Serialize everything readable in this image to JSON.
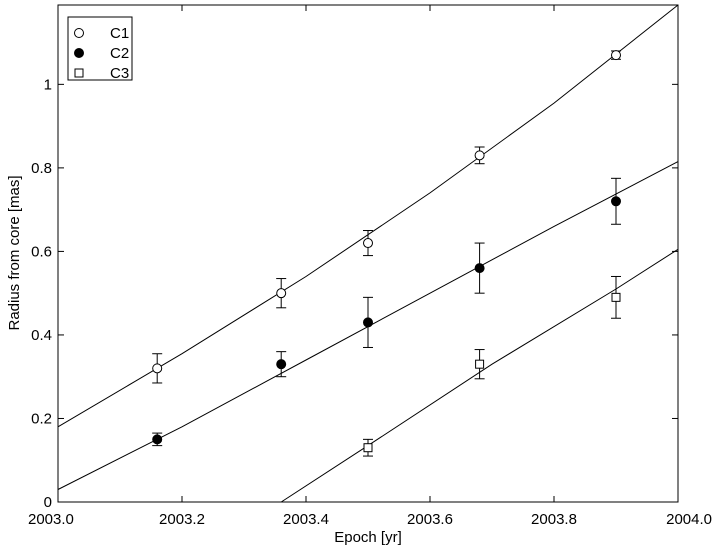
{
  "chart_data": {
    "type": "scatter",
    "title": "",
    "xlabel": "Epoch [yr]",
    "ylabel": "Radius from core [mas]",
    "xlim": [
      2003.0,
      2004.0
    ],
    "ylim": [
      0,
      1.19
    ],
    "x_ticks": [
      2003.0,
      2003.2,
      2003.4,
      2003.6,
      2003.8,
      2004.0
    ],
    "x_tick_labels": [
      "2003.0",
      "2003.2",
      "2003.4",
      "2003.6",
      "2003.8",
      "2004.0"
    ],
    "y_ticks": [
      0,
      0.2,
      0.4,
      0.6,
      0.8,
      1.0
    ],
    "y_tick_labels": [
      "0",
      "0.2",
      "0.4",
      "0.6",
      "0.8",
      "1"
    ],
    "grid": false,
    "legend_position": "top-left",
    "series": [
      {
        "name": "C1",
        "marker": "open-circle",
        "points": [
          {
            "x": 2003.16,
            "y": 0.32,
            "err": 0.035
          },
          {
            "x": 2003.36,
            "y": 0.5,
            "err": 0.035
          },
          {
            "x": 2003.5,
            "y": 0.62,
            "err": 0.03
          },
          {
            "x": 2003.68,
            "y": 0.83,
            "err": 0.02
          },
          {
            "x": 2003.9,
            "y": 1.07,
            "err": 0.01
          }
        ],
        "fit": [
          {
            "x": 2003.0,
            "y": 0.18
          },
          {
            "x": 2003.2,
            "y": 0.355
          },
          {
            "x": 2003.4,
            "y": 0.54
          },
          {
            "x": 2003.6,
            "y": 0.74
          },
          {
            "x": 2003.8,
            "y": 0.955
          },
          {
            "x": 2004.0,
            "y": 1.19
          }
        ]
      },
      {
        "name": "C2",
        "marker": "filled-circle",
        "points": [
          {
            "x": 2003.16,
            "y": 0.15,
            "err": 0.015
          },
          {
            "x": 2003.36,
            "y": 0.33,
            "err": 0.03
          },
          {
            "x": 2003.5,
            "y": 0.43,
            "err": 0.06
          },
          {
            "x": 2003.68,
            "y": 0.56,
            "err": 0.06
          },
          {
            "x": 2003.9,
            "y": 0.72,
            "err": 0.055
          }
        ],
        "fit": [
          {
            "x": 2003.0,
            "y": 0.03
          },
          {
            "x": 2003.2,
            "y": 0.18
          },
          {
            "x": 2003.4,
            "y": 0.34
          },
          {
            "x": 2003.6,
            "y": 0.5
          },
          {
            "x": 2003.8,
            "y": 0.66
          },
          {
            "x": 2004.0,
            "y": 0.815
          }
        ]
      },
      {
        "name": "C3",
        "marker": "open-square",
        "points": [
          {
            "x": 2003.5,
            "y": 0.13,
            "err": 0.02
          },
          {
            "x": 2003.68,
            "y": 0.33,
            "err": 0.035
          },
          {
            "x": 2003.9,
            "y": 0.49,
            "err": 0.05
          }
        ],
        "fit": [
          {
            "x": 2003.36,
            "y": 0.0
          },
          {
            "x": 2003.5,
            "y": 0.135
          },
          {
            "x": 2003.7,
            "y": 0.33
          },
          {
            "x": 2003.9,
            "y": 0.51
          },
          {
            "x": 2004.0,
            "y": 0.605
          }
        ]
      }
    ]
  }
}
